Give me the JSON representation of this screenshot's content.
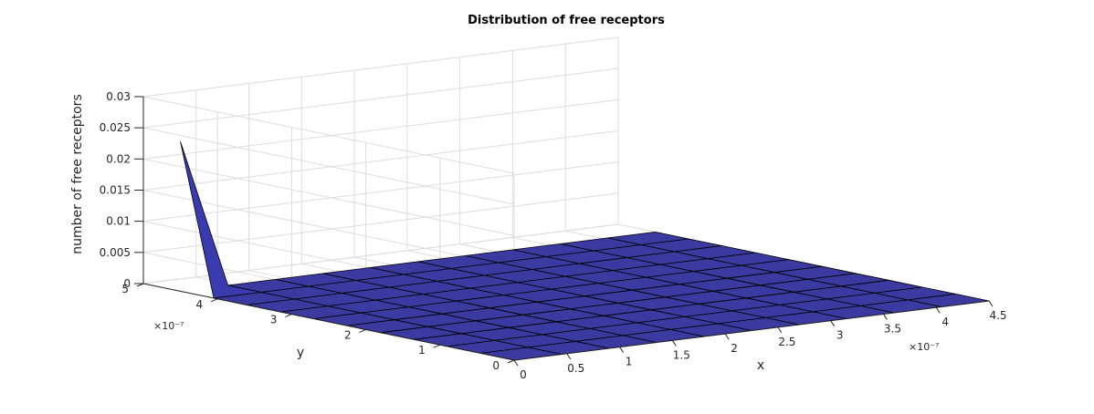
{
  "chart_data": {
    "type": "surface",
    "title": "Distribution of free receptors",
    "xlabel": "x",
    "ylabel": "y",
    "zlabel": "number of free receptors",
    "x_exponent": "×10⁻⁷",
    "y_exponent": "×10⁻⁷",
    "x_tick_labels": [
      "0",
      "0.5",
      "1",
      "1.5",
      "2",
      "2.5",
      "3",
      "3.5",
      "4",
      "4.5"
    ],
    "x_tick_values": [
      0,
      0.5,
      1,
      1.5,
      2,
      2.5,
      3,
      3.5,
      4,
      4.5
    ],
    "y_tick_labels": [
      "0",
      "1",
      "2",
      "3",
      "4",
      "5"
    ],
    "y_tick_values": [
      0,
      1,
      2,
      3,
      4,
      5
    ],
    "z_tick_labels": [
      "0",
      "0.005",
      "0.01",
      "0.015",
      "0.02",
      "0.025",
      "0.03"
    ],
    "z_tick_values": [
      0,
      0.005,
      0.01,
      0.015,
      0.02,
      0.025,
      0.03
    ],
    "xlim": [
      0,
      4.5
    ],
    "ylim": [
      0,
      5
    ],
    "zlim": [
      0,
      0.03
    ],
    "grid": true,
    "surface_color": "#3a3aa0",
    "edge_color": "#000000",
    "x": [
      0,
      0.45,
      0.9,
      1.35,
      1.8,
      2.25,
      2.7,
      3.15,
      3.6,
      4.05,
      4.5
    ],
    "y": [
      0,
      0.45,
      0.9,
      1.35,
      1.8,
      2.25,
      2.7,
      3.15,
      3.6,
      4.05,
      4.5
    ],
    "peak": {
      "x": 0,
      "y": 4.5,
      "z": 0.024
    },
    "baseline_z": 0
  }
}
